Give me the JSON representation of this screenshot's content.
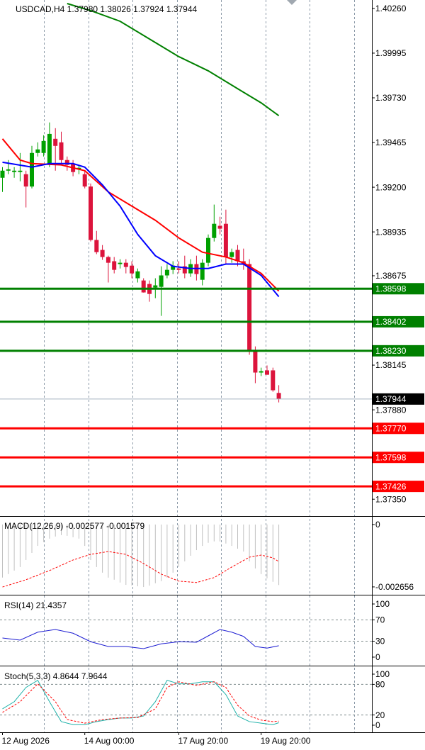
{
  "chart_data": [
    {
      "type": "candlestick",
      "title": "USDCAD,H4  1.37980 1.38026 1.37924 1.37944",
      "categories": [
        "12 Aug 2026",
        null,
        null,
        null,
        null,
        null,
        null,
        null,
        null,
        null,
        null,
        null,
        null,
        null,
        "14 Aug 00:00",
        null,
        null,
        null,
        null,
        null,
        null,
        null,
        null,
        null,
        null,
        null,
        null,
        null,
        null,
        null,
        "17 Aug 20:00",
        null,
        null,
        null,
        null,
        null,
        null,
        null,
        null,
        null,
        null,
        null,
        null,
        null,
        "19 Aug 20:00",
        null,
        null,
        null
      ],
      "open": [
        1.39256,
        1.39298,
        1.3929,
        1.3929,
        1.39277,
        1.39204,
        1.39403,
        1.39403,
        1.3934,
        1.39487,
        1.39466,
        1.39361,
        1.3934,
        1.39306,
        1.39277,
        1.39204,
        1.38887,
        1.38828,
        1.38786,
        1.38761,
        1.38744,
        1.38752,
        1.38735,
        1.3866,
        1.38647,
        1.38626,
        1.38605,
        1.38609,
        1.38677,
        1.3871,
        1.38718,
        1.38731,
        1.38689,
        1.38744,
        1.38651,
        1.38752,
        1.38899,
        1.38971,
        1.38983,
        1.38786,
        1.38828,
        1.38761,
        1.38744,
        1.38227,
        1.38101,
        1.38114,
        1.38114,
        1.3798
      ],
      "high": [
        1.39319,
        1.39361,
        1.39319,
        1.39403,
        1.39298,
        1.39445,
        1.39466,
        1.39508,
        1.39584,
        1.3955,
        1.39529,
        1.39382,
        1.39361,
        1.39332,
        1.39298,
        1.39222,
        1.38941,
        1.38857,
        1.38794,
        1.38786,
        1.38773,
        1.38773,
        1.38761,
        1.38718,
        1.3866,
        1.38647,
        1.3866,
        1.38731,
        1.38744,
        1.38761,
        1.38761,
        1.38794,
        1.38773,
        1.38794,
        1.38773,
        1.3892,
        1.39097,
        1.39025,
        1.39067,
        1.38836,
        1.38857,
        1.38836,
        1.38773,
        1.38256,
        1.3813,
        1.38143,
        1.3813,
        1.38026
      ],
      "low": [
        1.39172,
        1.39277,
        1.39256,
        1.39235,
        1.3908,
        1.39193,
        1.39382,
        1.39382,
        1.39319,
        1.39298,
        1.3934,
        1.39298,
        1.39265,
        1.39277,
        1.39193,
        1.38878,
        1.38803,
        1.38769,
        1.38635,
        1.38689,
        1.38718,
        1.38689,
        1.3866,
        1.38635,
        1.38575,
        1.38521,
        1.38542,
        1.38437,
        1.3866,
        1.38685,
        1.38689,
        1.3866,
        1.38668,
        1.38647,
        1.38618,
        1.38731,
        1.38878,
        1.3892,
        1.38744,
        1.38752,
        1.38731,
        1.3871,
        1.38206,
        1.38038,
        1.3808,
        1.38088,
        1.37987,
        1.37924
      ],
      "close": [
        1.39298,
        1.39306,
        1.39298,
        1.39298,
        1.39204,
        1.39403,
        1.39424,
        1.39474,
        1.39516,
        1.39445,
        1.39361,
        1.39332,
        1.3929,
        1.39315,
        1.39204,
        1.38887,
        1.38815,
        1.38786,
        1.38752,
        1.3871,
        1.38752,
        1.38727,
        1.38689,
        1.38701,
        1.38576,
        1.38567,
        1.38618,
        1.38677,
        1.3871,
        1.38735,
        1.3871,
        1.38689,
        1.38744,
        1.38685,
        1.38752,
        1.38899,
        1.38983,
        1.38954,
        1.38786,
        1.38815,
        1.38761,
        1.38744,
        1.38227,
        1.38101,
        1.38109,
        1.38088,
        1.37996,
        1.37944
      ],
      "up_color": "#00a000",
      "down_color": "#dc143c",
      "ylim": [
        1.3725,
        1.4031
      ],
      "yticks": [
        {
          "value": 1.4026,
          "label": "1.40260"
        },
        {
          "value": 1.39995,
          "label": "1.39995"
        },
        {
          "value": 1.3973,
          "label": "1.39730"
        },
        {
          "value": 1.39465,
          "label": "1.39465"
        },
        {
          "value": 1.392,
          "label": "1.39200"
        },
        {
          "value": 1.38935,
          "label": "1.38935"
        },
        {
          "value": 1.38675,
          "label": "1.38675"
        },
        {
          "value": 1.38145,
          "label": "1.38145"
        },
        {
          "value": 1.3788,
          "label": "1.37880"
        },
        {
          "value": 1.3735,
          "label": "1.37350"
        }
      ],
      "lines": [
        {
          "color": "#008000",
          "x": [
            11,
            15,
            20,
            25,
            30,
            35,
            40,
            44,
            47
          ],
          "values": [
            1.40289,
            1.40247,
            1.40184,
            1.40079,
            1.39974,
            1.3989,
            1.39784,
            1.397,
            1.39624
          ]
        },
        {
          "color": "#ff0000",
          "x": [
            0,
            3,
            5,
            10,
            14,
            18,
            22,
            26,
            30,
            34,
            38,
            41,
            44,
            47
          ],
          "values": [
            1.39487,
            1.39361,
            1.3934,
            1.39332,
            1.39298,
            1.39172,
            1.39088,
            1.39004,
            1.38899,
            1.38815,
            1.38786,
            1.38752,
            1.38689,
            1.38584
          ]
        },
        {
          "color": "#0000ff",
          "x": [
            0,
            5,
            8,
            12,
            14,
            17,
            20,
            23,
            26,
            29,
            32,
            35,
            38,
            41,
            44,
            47
          ],
          "values": [
            1.39348,
            1.39319,
            1.3934,
            1.3934,
            1.39319,
            1.39214,
            1.39088,
            1.3892,
            1.38794,
            1.38731,
            1.38718,
            1.38718,
            1.38744,
            1.38744,
            1.38677,
            1.38551
          ]
        }
      ],
      "levels": [
        {
          "value": 1.38598,
          "label": "1.38598",
          "color": "#008000"
        },
        {
          "value": 1.38402,
          "label": "1.38402",
          "color": "#008000"
        },
        {
          "value": 1.3823,
          "label": "1.38230",
          "color": "#008000"
        },
        {
          "value": 1.3777,
          "label": "1.37770",
          "color": "#ff0000"
        },
        {
          "value": 1.37598,
          "label": "1.37598",
          "color": "#ff0000"
        },
        {
          "value": 1.37426,
          "label": "1.37426",
          "color": "#ff0000"
        }
      ],
      "last": {
        "value": 1.37944,
        "label": "1.37944",
        "color": "#000000"
      }
    },
    {
      "type": "macd",
      "title": "MACD(12,26,9) -0.002577 -0.001579",
      "values": [
        -0.00226,
        -0.00211,
        -0.00196,
        -0.00181,
        -0.00151,
        -0.00121,
        -0.00091,
        -0.00075,
        -0.0006,
        -0.00051,
        -0.00045,
        -0.00048,
        -0.00054,
        -0.0006,
        -0.00091,
        -0.00151,
        -0.00181,
        -0.00205,
        -0.00226,
        -0.00235,
        -0.00247,
        -0.00257,
        -0.0026,
        -0.00263,
        -0.00266,
        -0.0026,
        -0.0025,
        -0.00241,
        -0.00226,
        -0.00205,
        -0.00181,
        -0.00157,
        -0.00133,
        -0.00109,
        -0.00091,
        -0.00078,
        -0.00072,
        -0.00072,
        -0.00081,
        -0.00091,
        -0.00103,
        -0.00115,
        -0.00157,
        -0.00187,
        -0.00211,
        -0.00229,
        -0.00244,
        -0.002577
      ],
      "color": "#c0c0c0",
      "signal": {
        "color": "#ff0000",
        "x": [
          0,
          4,
          8,
          12,
          15,
          18,
          21,
          24,
          27,
          30,
          33,
          36,
          39,
          42,
          44,
          46,
          47
        ],
        "values": [
          -0.00266,
          -0.00235,
          -0.00196,
          -0.00151,
          -0.00127,
          -0.00115,
          -0.00127,
          -0.00166,
          -0.00211,
          -0.00241,
          -0.00247,
          -0.00226,
          -0.00181,
          -0.00139,
          -0.0013,
          -0.00142,
          -0.001579
        ]
      },
      "ylim": [
        -0.00296,
        0.00033
      ],
      "yticks": [
        0,
        -0.002656
      ]
    },
    {
      "type": "line",
      "title": "RSI(14) 21.4357",
      "series": [
        {
          "color": "#1e1ed2",
          "x": [
            0,
            3,
            6,
            9,
            12,
            15,
            18,
            21,
            24,
            27,
            30,
            33,
            35,
            37,
            39,
            41,
            43,
            45,
            47
          ],
          "values": [
            36,
            32,
            47,
            52,
            45,
            29,
            20,
            20,
            16,
            25,
            29,
            28,
            40,
            52,
            47,
            39,
            20,
            17,
            21.4357
          ]
        }
      ],
      "ylim": [
        -14.7,
        114.7
      ],
      "yticks": [
        100,
        70,
        30,
        0
      ],
      "levels": [
        70,
        30
      ]
    },
    {
      "type": "line",
      "title": "Stoch(5,3,3) 4.8644 7.9644",
      "series": [
        {
          "color": "#20b2aa",
          "x": [
            0,
            2,
            4,
            6,
            8,
            10,
            12,
            14,
            16,
            18,
            20,
            22,
            24,
            26,
            28,
            30,
            32,
            34,
            36,
            38,
            40,
            42,
            44,
            46,
            47
          ],
          "values": [
            32,
            46,
            74,
            88,
            46,
            7,
            1,
            1,
            7,
            11,
            14,
            14,
            18,
            46,
            88,
            81,
            81,
            85,
            85,
            60,
            18,
            7,
            4,
            1,
            4.8644
          ]
        },
        {
          "color": "#ff0000",
          "dash": true,
          "x": [
            0,
            3,
            6,
            9,
            11,
            14,
            17,
            20,
            23,
            26,
            28,
            30,
            33,
            36,
            38,
            40,
            42,
            44,
            46,
            47
          ],
          "values": [
            25,
            46,
            81,
            46,
            11,
            4,
            11,
            14,
            15,
            32,
            74,
            85,
            78,
            85,
            74,
            39,
            18,
            10,
            7,
            7.9644
          ]
        }
      ],
      "ylim": [
        -13.9,
        113.9
      ],
      "yticks": [
        100,
        80,
        20,
        0
      ],
      "levels": [
        80,
        20
      ]
    }
  ]
}
